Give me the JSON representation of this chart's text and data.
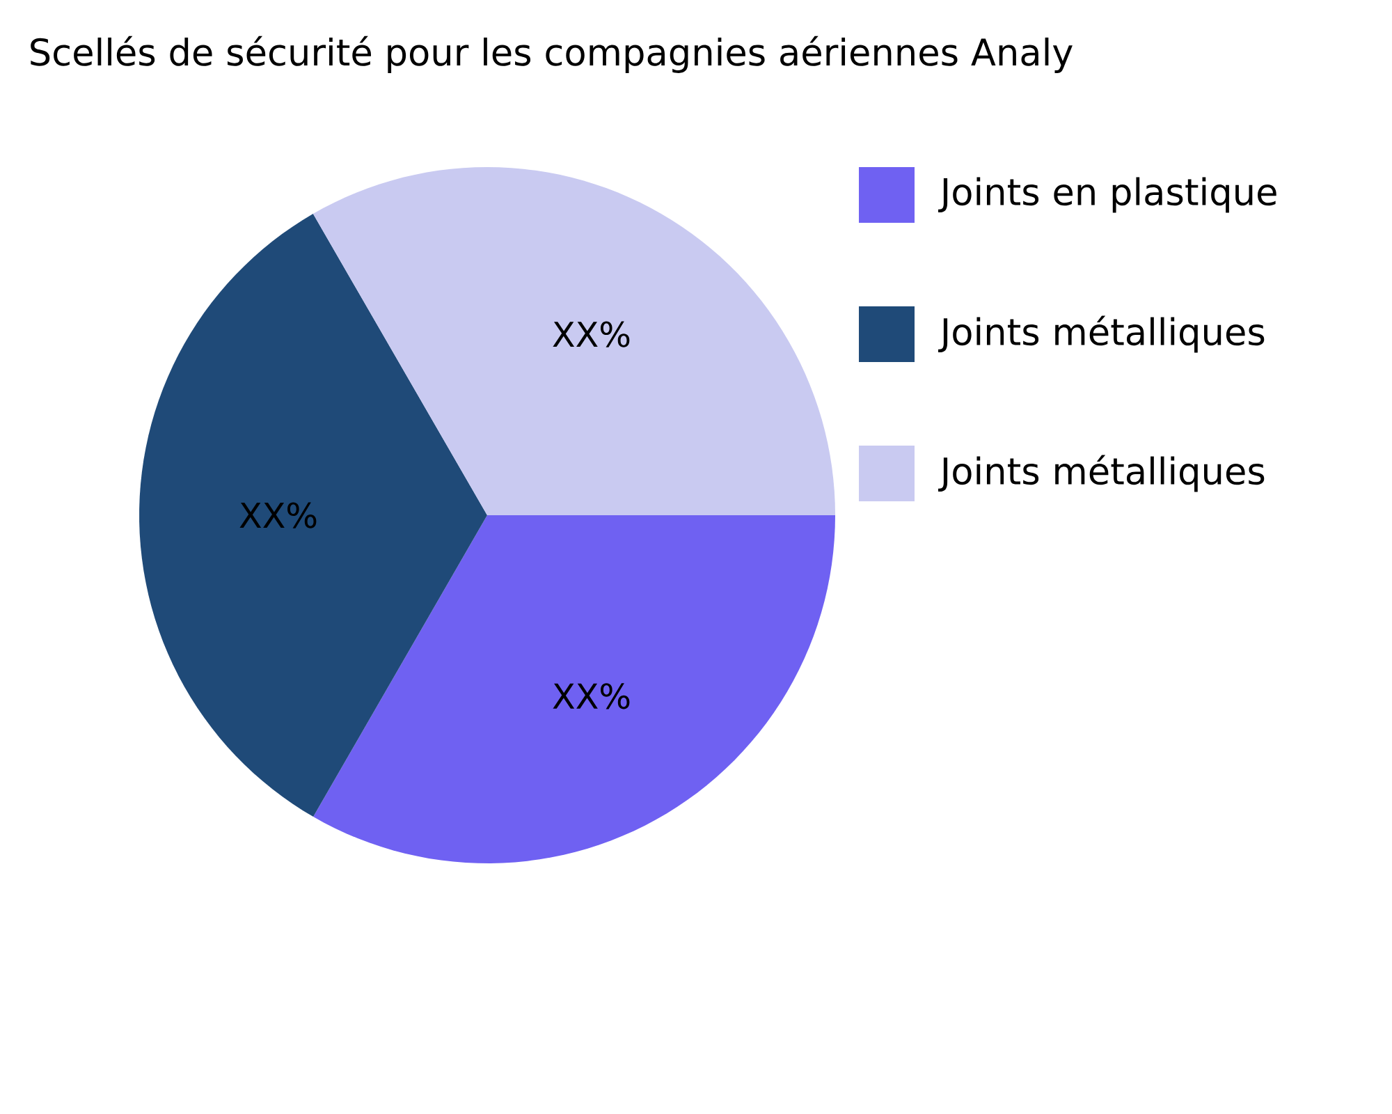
{
  "chart_data": {
    "type": "pie",
    "title": "Scellés de sécurité pour les compagnies aériennes Analy",
    "categories": [
      "Joints en plastique",
      "Joints métalliques",
      "Joints métalliques"
    ],
    "values": [
      33.33,
      33.33,
      33.34
    ],
    "colors": [
      "#6f61f2",
      "#1f4a78",
      "#c9caf1"
    ],
    "value_labels": [
      "XX%",
      "XX%",
      "XX%"
    ],
    "legend": "top right"
  }
}
